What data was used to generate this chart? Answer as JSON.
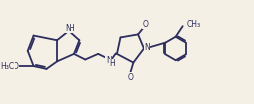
{
  "bg_color": "#f5f0e6",
  "line_color": "#2d2d5e",
  "line_width": 1.3,
  "font_size": 6.2,
  "font_size_small": 5.5,
  "xlim": [
    0,
    10.5
  ],
  "ylim": [
    0.5,
    4.5
  ]
}
